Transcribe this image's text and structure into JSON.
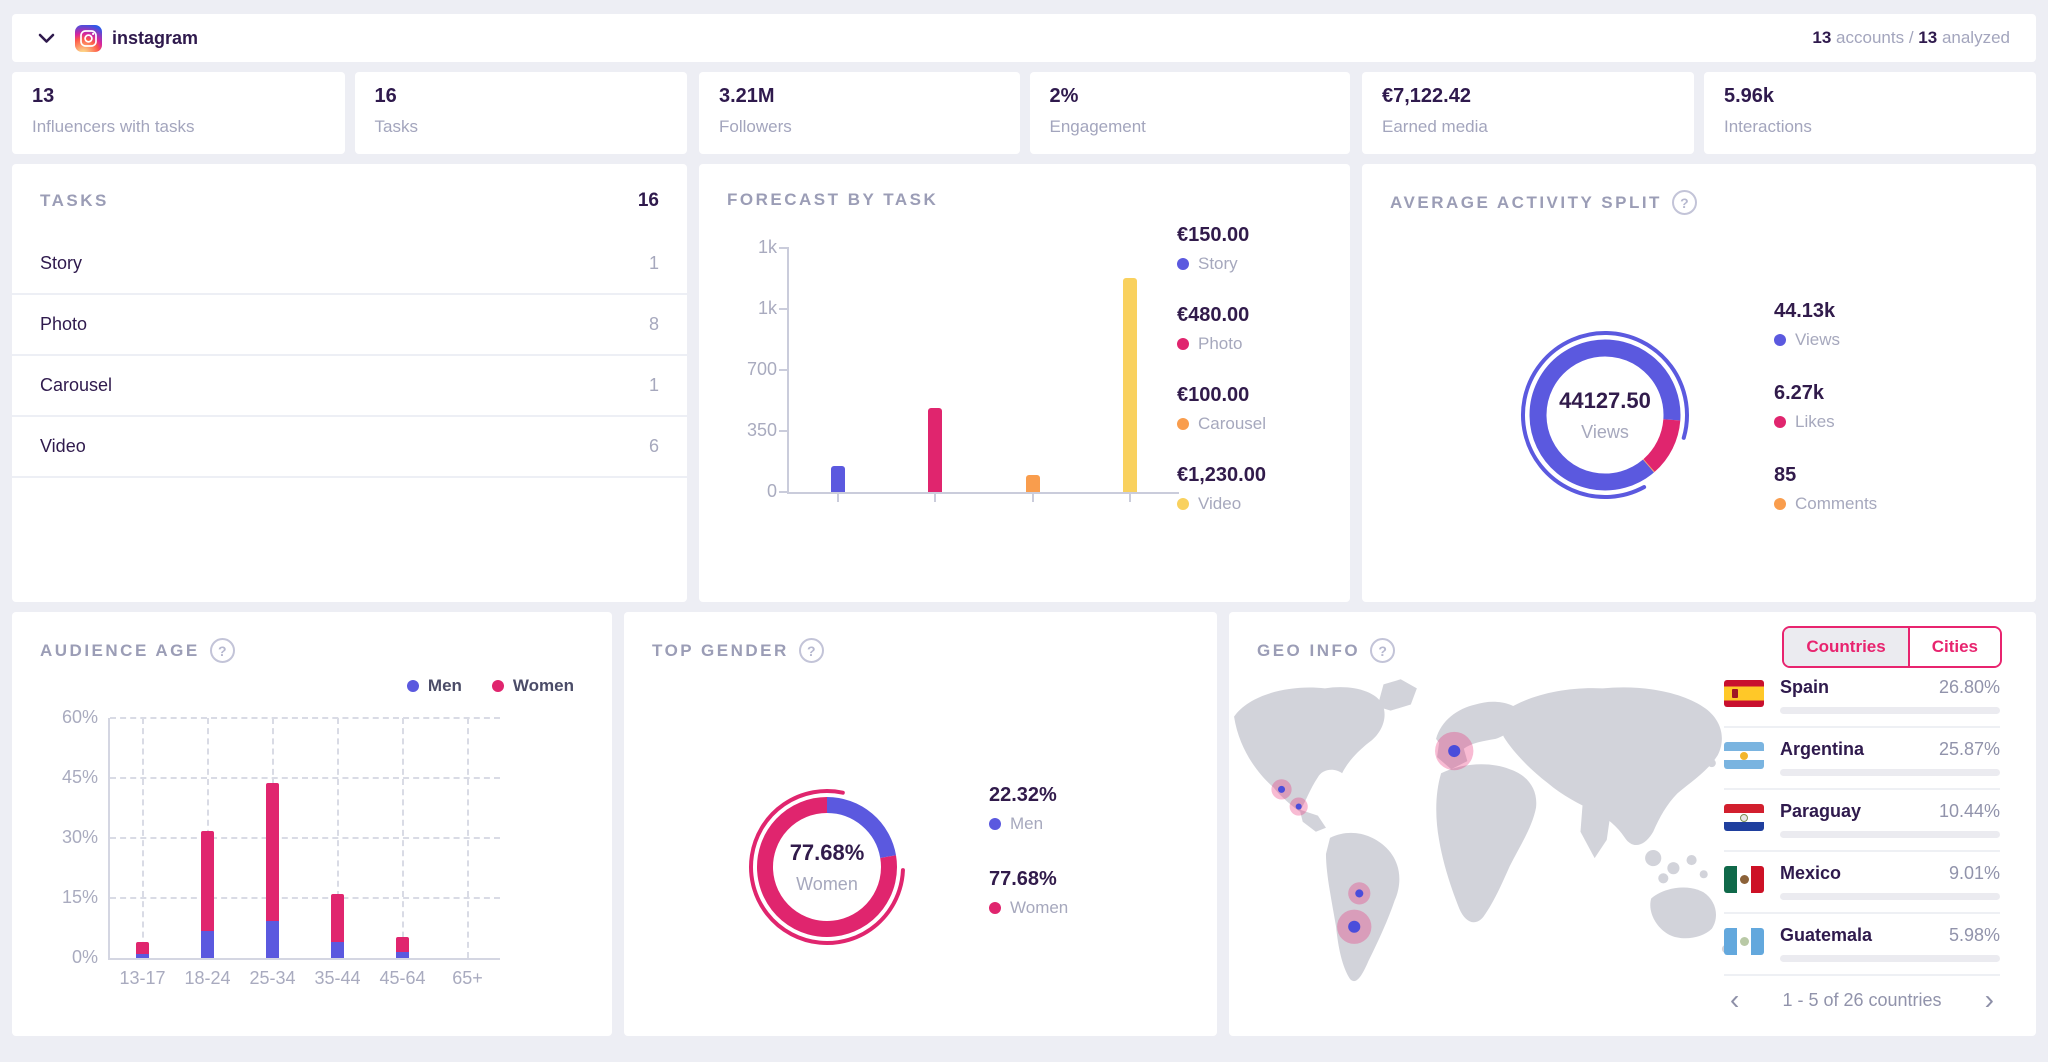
{
  "icons": {
    "question": "?",
    "prev": "‹",
    "next": "›"
  },
  "header": {
    "title": "instagram",
    "count_accounts": "13",
    "accounts_word": "accounts",
    "slash": "/",
    "count_analyzed": "13",
    "analyzed_word": "analyzed"
  },
  "kpis": [
    {
      "value": "13",
      "label": "Influencers with tasks"
    },
    {
      "value": "16",
      "label": "Tasks"
    },
    {
      "value": "3.21M",
      "label": "Followers"
    },
    {
      "value": "2%",
      "label": "Engagement"
    },
    {
      "value": "€7,122.42",
      "label": "Earned media"
    },
    {
      "value": "5.96k",
      "label": "Interactions"
    }
  ],
  "tasks_panel": {
    "title": "TASKS",
    "total": "16",
    "rows": [
      {
        "label": "Story",
        "value": "1"
      },
      {
        "label": "Photo",
        "value": "8"
      },
      {
        "label": "Carousel",
        "value": "1"
      },
      {
        "label": "Video",
        "value": "6"
      }
    ]
  },
  "forecast_panel": {
    "title": "FORECAST BY TASK",
    "legend": [
      {
        "amount": "€150.00",
        "label": "Story"
      },
      {
        "amount": "€480.00",
        "label": "Photo"
      },
      {
        "amount": "€100.00",
        "label": "Carousel"
      },
      {
        "amount": "€1,230.00",
        "label": "Video"
      }
    ]
  },
  "activity_panel": {
    "title": "AVERAGE ACTIVITY SPLIT",
    "legend": [
      {
        "value": "44.13k",
        "label": "Views"
      },
      {
        "value": "6.27k",
        "label": "Likes"
      },
      {
        "value": "85",
        "label": "Comments"
      }
    ]
  },
  "audience_panel": {
    "title": "AUDIENCE AGE",
    "legend": [
      {
        "label": "Men"
      },
      {
        "label": "Women"
      }
    ]
  },
  "gender_panel": {
    "title": "TOP GENDER",
    "legend": [
      {
        "value": "22.32%",
        "label": "Men"
      },
      {
        "value": "77.68%",
        "label": "Women"
      }
    ]
  },
  "geo_panel": {
    "title": "GEO INFO",
    "tabs": {
      "countries": "Countries",
      "cities": "Cities"
    },
    "active_tab": "Countries",
    "rows": [
      {
        "name": "Spain",
        "pct_label": "26.80%",
        "pct": 26.8,
        "flag": "es"
      },
      {
        "name": "Argentina",
        "pct_label": "25.87%",
        "pct": 25.87,
        "flag": "ar"
      },
      {
        "name": "Paraguay",
        "pct_label": "10.44%",
        "pct": 10.44,
        "flag": "py"
      },
      {
        "name": "Mexico",
        "pct_label": "9.01%",
        "pct": 9.01,
        "flag": "mx"
      },
      {
        "name": "Guatemala",
        "pct_label": "5.98%",
        "pct": 5.98,
        "flag": "gt"
      }
    ],
    "pagination": "1 - 5 of 26 countries",
    "markers": [
      {
        "country": "Spain",
        "x": 223,
        "y": 74,
        "r": 19,
        "dot": 6
      },
      {
        "country": "Mexico",
        "x": 52,
        "y": 112,
        "r": 10,
        "dot": 3.5
      },
      {
        "country": "Guatemala",
        "x": 69,
        "y": 129,
        "r": 9,
        "dot": 3
      },
      {
        "country": "Paraguay",
        "x": 129,
        "y": 215,
        "r": 11,
        "dot": 4
      },
      {
        "country": "Argentina",
        "x": 124,
        "y": 248,
        "r": 17,
        "dot": 6
      }
    ]
  },
  "chart_data": [
    {
      "id": "forecast_by_task",
      "type": "bar",
      "title": "FORECAST BY TASK",
      "categories": [
        "Story",
        "Photo",
        "Carousel",
        "Video"
      ],
      "values": [
        150,
        480,
        100,
        1230
      ],
      "value_labels": [
        "€150.00",
        "€480.00",
        "€100.00",
        "€1,230.00"
      ],
      "colors": [
        "#5b59df",
        "#e0256e",
        "#f99d4d",
        "#f9d15e"
      ],
      "ymax": 1400,
      "yticks": [
        {
          "value": 0,
          "label": "0"
        },
        {
          "value": 350,
          "label": "350"
        },
        {
          "value": 700,
          "label": "700"
        },
        {
          "value": 1050,
          "label": "1k"
        },
        {
          "value": 1400,
          "label": "1k"
        }
      ],
      "grid": false,
      "legend_position": "right"
    },
    {
      "id": "average_activity_split",
      "type": "donut",
      "center_value": "44127.50",
      "center_label": "Views",
      "start_deg": 139.5,
      "segments": [
        {
          "label": "Views",
          "value_label": "44.13k",
          "pct": 87.41,
          "color": "#5b59df"
        },
        {
          "label": "Likes",
          "value_label": "6.27k",
          "pct": 12.42,
          "color": "#e0256e"
        },
        {
          "label": "Comments",
          "value_label": "85",
          "pct": 0.17,
          "color": "#f99d4d"
        }
      ]
    },
    {
      "id": "audience_age",
      "type": "stacked_bar",
      "title": "AUDIENCE AGE",
      "categories": [
        "13-17",
        "18-24",
        "25-34",
        "35-44",
        "45-64",
        "65+"
      ],
      "series": [
        {
          "name": "Men",
          "color": "#5b59df",
          "values": [
            1.0,
            6.8,
            9.3,
            4.0,
            1.6,
            0
          ]
        },
        {
          "name": "Women",
          "color": "#e0256e",
          "values": [
            3.0,
            25.0,
            34.5,
            12.0,
            3.6,
            0
          ]
        }
      ],
      "ylim": [
        0,
        60
      ],
      "yticks": [
        0,
        15,
        30,
        45,
        60
      ],
      "ytick_labels": [
        "0%",
        "15%",
        "30%",
        "45%",
        "60%"
      ],
      "grid": "dashed",
      "legend_position": "top-right"
    },
    {
      "id": "top_gender",
      "type": "donut",
      "center_value": "77.68%",
      "center_label": "Women",
      "start_deg": 0,
      "segments": [
        {
          "label": "Men",
          "value_label": "22.32%",
          "pct": 22.32,
          "color": "#5b59df"
        },
        {
          "label": "Women",
          "value_label": "77.68%",
          "pct": 77.68,
          "color": "#e0256e"
        }
      ]
    },
    {
      "id": "geo_countries",
      "type": "table",
      "title": "GEO INFO",
      "columns": [
        "country",
        "audience_pct"
      ],
      "rows": [
        {
          "country": "Spain",
          "pct": 26.8
        },
        {
          "country": "Argentina",
          "pct": 25.87
        },
        {
          "country": "Paraguay",
          "pct": 10.44
        },
        {
          "country": "Mexico",
          "pct": 9.01
        },
        {
          "country": "Guatemala",
          "pct": 5.98
        }
      ],
      "pagination": "1 - 5 of 26 countries"
    }
  ]
}
